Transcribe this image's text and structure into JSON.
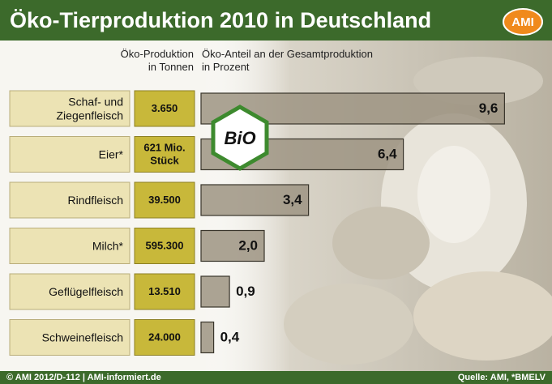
{
  "chart_data": {
    "type": "bar",
    "orientation": "horizontal",
    "title": "Öko-Tierproduktion 2010 in Deutschland",
    "logo": "AMI",
    "bio_logo": "BiO",
    "production_header": "Öko-Produktion\nin Tonnen",
    "share_header": "Öko-Anteil an der Gesamtproduktion\nin Prozent",
    "categories": [
      "Schaf- und\nZiegenfleisch",
      "Eier*",
      "Rindfleisch",
      "Milch*",
      "Geflügelfleisch",
      "Schweinefleisch"
    ],
    "production": [
      "3.650",
      "621 Mio.\nStück",
      "39.500",
      "595.300",
      "13.510",
      "24.000"
    ],
    "values": [
      9.6,
      6.4,
      3.4,
      2.0,
      0.9,
      0.4
    ],
    "value_labels": [
      "9,6",
      "6,4",
      "3,4",
      "2,0",
      "0,9",
      "0,4"
    ],
    "xlim": [
      0,
      10
    ],
    "color": "#9d9482",
    "footer_left": "© AMI 2012/D-112 | AMI-informiert.de",
    "footer_right": "Quelle: AMI, *BMELV"
  }
}
